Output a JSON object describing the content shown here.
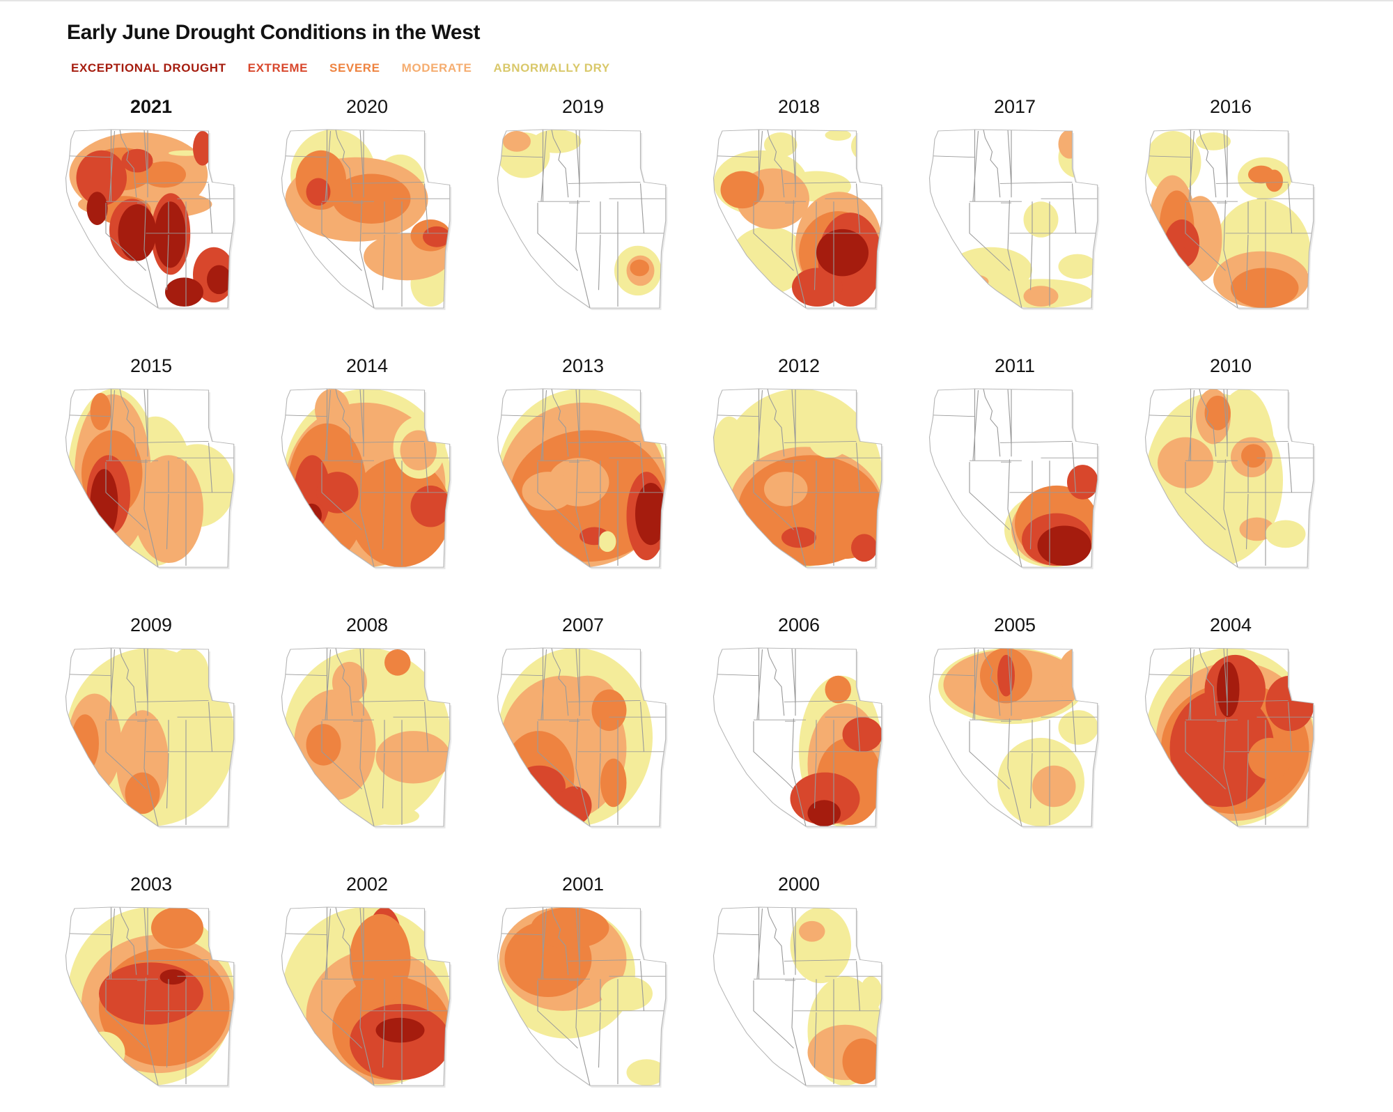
{
  "title": "Early June Drought Conditions in the West",
  "legend": [
    {
      "label": "EXCEPTIONAL DROUGHT",
      "color": "#a51c0e"
    },
    {
      "label": "EXTREME",
      "color": "#d8472c"
    },
    {
      "label": "SEVERE",
      "color": "#ee8340"
    },
    {
      "label": "MODERATE",
      "color": "#f5ad70"
    },
    {
      "label": "ABNORMALLY DRY",
      "color": "#d9c86a"
    }
  ],
  "fills": {
    "exceptional": "#a51c0e",
    "extreme": "#d8472c",
    "severe": "#ee8340",
    "moderate": "#f5ad70",
    "dry": "#f4ec9a"
  },
  "current_year": "2021",
  "panels": [
    {
      "year": "2021"
    },
    {
      "year": "2020"
    },
    {
      "year": "2019"
    },
    {
      "year": "2018"
    },
    {
      "year": "2017"
    },
    {
      "year": "2016"
    },
    {
      "year": "2015"
    },
    {
      "year": "2014"
    },
    {
      "year": "2013"
    },
    {
      "year": "2012"
    },
    {
      "year": "2011"
    },
    {
      "year": "2010"
    },
    {
      "year": "2009"
    },
    {
      "year": "2008"
    },
    {
      "year": "2007"
    },
    {
      "year": "2006"
    },
    {
      "year": "2005"
    },
    {
      "year": "2004"
    },
    {
      "year": "2003"
    },
    {
      "year": "2002"
    },
    {
      "year": "2001"
    },
    {
      "year": "2000"
    }
  ]
}
